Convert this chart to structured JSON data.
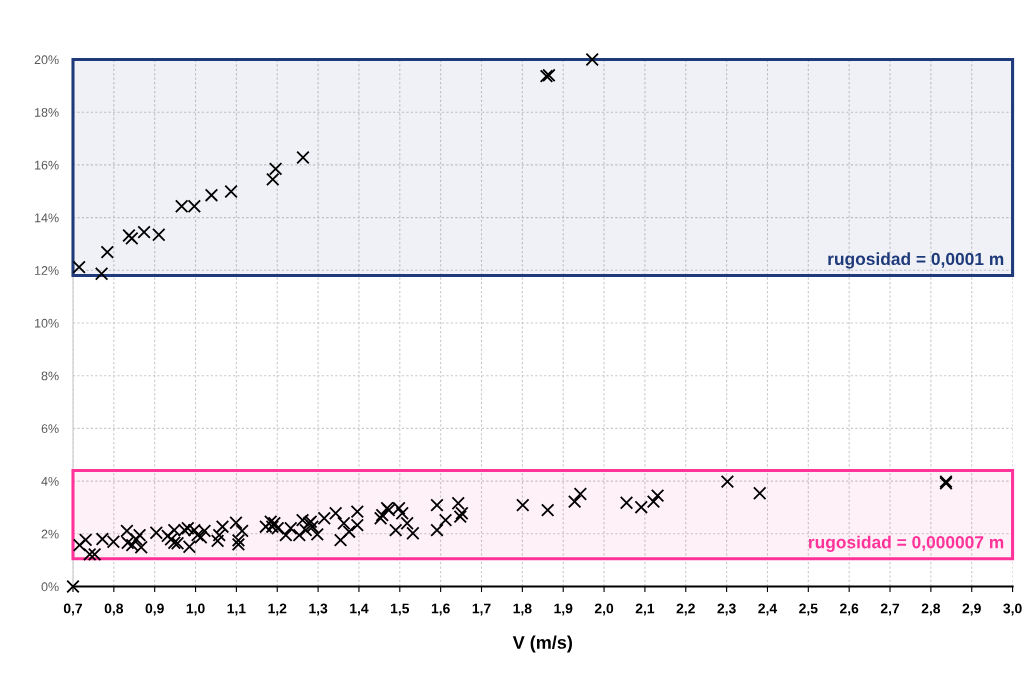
{
  "chart_data": {
    "type": "scatter",
    "xlabel": "V (m/s)",
    "xlim": [
      0.7,
      3.0
    ],
    "ylim": [
      0,
      20
    ],
    "xticks": [
      {
        "value": 0.7,
        "label": "0,7"
      },
      {
        "value": 0.8,
        "label": "0,8"
      },
      {
        "value": 0.9,
        "label": "0,9"
      },
      {
        "value": 1.0,
        "label": "1,0"
      },
      {
        "value": 1.1,
        "label": "1,1"
      },
      {
        "value": 1.2,
        "label": "1,2"
      },
      {
        "value": 1.3,
        "label": "1,3"
      },
      {
        "value": 1.4,
        "label": "1,4"
      },
      {
        "value": 1.5,
        "label": "1,5"
      },
      {
        "value": 1.6,
        "label": "1,6"
      },
      {
        "value": 1.7,
        "label": "1,7"
      },
      {
        "value": 1.8,
        "label": "1,8"
      },
      {
        "value": 1.9,
        "label": "1,9"
      },
      {
        "value": 2.0,
        "label": "2,0"
      },
      {
        "value": 2.1,
        "label": "2,1"
      },
      {
        "value": 2.2,
        "label": "2,2"
      },
      {
        "value": 2.3,
        "label": "2,3"
      },
      {
        "value": 2.4,
        "label": "2,4"
      },
      {
        "value": 2.5,
        "label": "2,5"
      },
      {
        "value": 2.6,
        "label": "2,6"
      },
      {
        "value": 2.7,
        "label": "2,7"
      },
      {
        "value": 2.8,
        "label": "2,8"
      },
      {
        "value": 2.9,
        "label": "2,9"
      },
      {
        "value": 3.0,
        "label": "3,0"
      }
    ],
    "yticks": [
      {
        "value": 0,
        "label": "0%"
      },
      {
        "value": 2,
        "label": "2%"
      },
      {
        "value": 4,
        "label": "4%"
      },
      {
        "value": 6,
        "label": "6%"
      },
      {
        "value": 8,
        "label": "8%"
      },
      {
        "value": 10,
        "label": "10%"
      },
      {
        "value": 12,
        "label": "12%"
      },
      {
        "value": 14,
        "label": "14%"
      },
      {
        "value": 16,
        "label": "16%"
      },
      {
        "value": 18,
        "label": "18%"
      },
      {
        "value": 20,
        "label": "20%"
      }
    ],
    "grid": true,
    "marker": "cross",
    "bands": [
      {
        "axis": "y",
        "from": 11.8,
        "to": 20,
        "label": "rugosidad = 0,0001 m",
        "color": "#1f3a7a"
      },
      {
        "axis": "y",
        "from": 1.05,
        "to": 4.4,
        "label": "rugosidad = 0,000007 m",
        "color": "#ff3399"
      }
    ],
    "series": [
      {
        "color": "#000000",
        "x": [
          0.715,
          0.77,
          0.784,
          0.837,
          0.844,
          0.874,
          0.91,
          0.966,
          0.997,
          1.039,
          1.087,
          1.189,
          1.196,
          1.263,
          1.859,
          1.865,
          1.971
        ],
        "values": [
          12.12,
          11.87,
          12.69,
          13.32,
          13.21,
          13.45,
          13.35,
          14.43,
          14.43,
          14.85,
          14.99,
          15.45,
          15.85,
          16.28,
          19.37,
          19.4,
          20.0
        ]
      },
      {
        "color": "#000000",
        "x": [
          0.7,
          0.716,
          0.731,
          0.741,
          0.753,
          0.772,
          0.799,
          0.832,
          0.834,
          0.845,
          0.855,
          0.863,
          0.867,
          0.904,
          0.932,
          0.94,
          0.948,
          0.948,
          0.956,
          0.973,
          0.981,
          0.985,
          0.997,
          1.005,
          1.013,
          1.022,
          1.054,
          1.058,
          1.066,
          1.099,
          1.105,
          1.105,
          1.114,
          1.172,
          1.184,
          1.188,
          1.193,
          1.201,
          1.221,
          1.233,
          1.254,
          1.262,
          1.27,
          1.278,
          1.282,
          1.286,
          1.298,
          1.315,
          1.343,
          1.355,
          1.363,
          1.376,
          1.396,
          1.396,
          1.453,
          1.457,
          1.469,
          1.473,
          1.49,
          1.498,
          1.506,
          1.518,
          1.532,
          1.591,
          1.591,
          1.612,
          1.643,
          1.648,
          1.652,
          1.801,
          1.862,
          1.928,
          1.942,
          2.055,
          2.091,
          2.121,
          2.131,
          2.302,
          2.381,
          2.837,
          2.837
        ],
        "values": [
          0.0,
          1.57,
          1.77,
          1.22,
          1.22,
          1.8,
          1.7,
          2.11,
          1.66,
          1.57,
          1.79,
          1.95,
          1.49,
          2.04,
          1.92,
          1.79,
          2.14,
          1.66,
          1.64,
          2.14,
          2.21,
          1.51,
          2.14,
          1.95,
          1.87,
          2.11,
          1.73,
          1.95,
          2.27,
          2.42,
          1.75,
          1.6,
          2.11,
          2.27,
          2.46,
          2.27,
          2.4,
          2.21,
          1.95,
          2.21,
          1.95,
          2.52,
          2.14,
          2.4,
          2.46,
          2.27,
          1.98,
          2.59,
          2.78,
          1.76,
          2.4,
          2.08,
          2.84,
          2.33,
          2.59,
          2.71,
          2.97,
          2.9,
          2.14,
          2.97,
          2.78,
          2.4,
          2.02,
          3.09,
          2.14,
          2.52,
          3.16,
          2.65,
          2.78,
          3.09,
          2.9,
          3.22,
          3.51,
          3.18,
          3.01,
          3.22,
          3.45,
          3.98,
          3.54,
          3.98,
          3.92
        ]
      }
    ]
  }
}
